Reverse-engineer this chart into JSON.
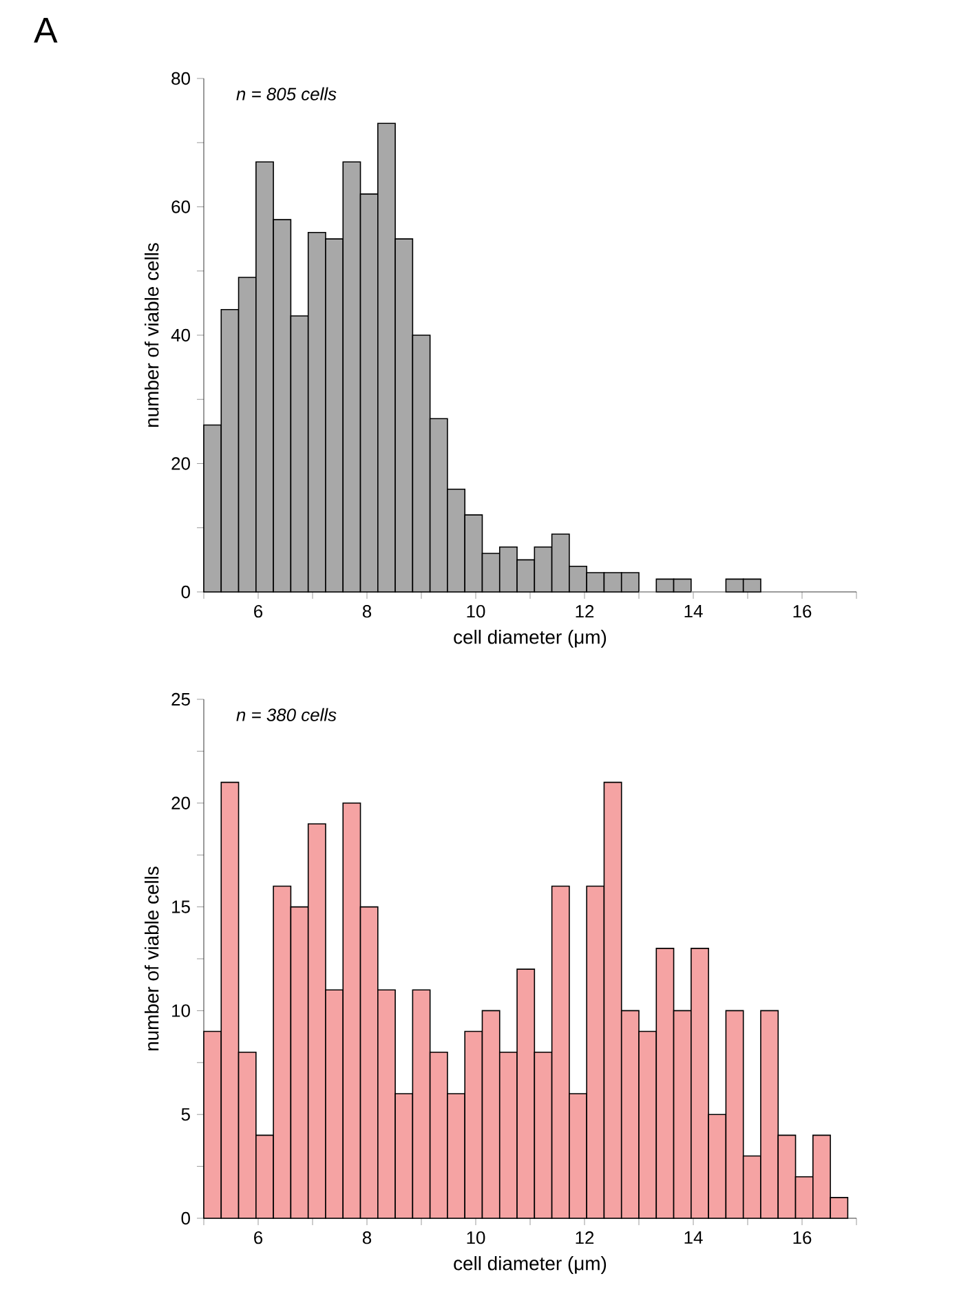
{
  "chart_data": [
    {
      "type": "histogram",
      "annotations": [
        "A",
        "n = 805 cells"
      ],
      "xlabel": "cell diameter (μm)",
      "ylabel": "number of viable cells",
      "color": "#a8a8a8",
      "bins": [
        5.0,
        5.32,
        5.64,
        5.96,
        6.28,
        6.6,
        6.92,
        7.24,
        7.56,
        7.88,
        8.2,
        8.52,
        8.84,
        9.16,
        9.48,
        9.8,
        10.12,
        10.44,
        10.76,
        11.08,
        11.4,
        11.72,
        12.04,
        12.36,
        12.68,
        13.0,
        13.32,
        13.64,
        13.96,
        14.28,
        14.6,
        14.92,
        15.24
      ],
      "values": [
        26,
        44,
        49,
        67,
        58,
        43,
        56,
        55,
        67,
        62,
        73,
        55,
        40,
        27,
        16,
        12,
        6,
        7,
        5,
        7,
        9,
        4,
        3,
        3,
        3,
        0,
        2,
        2,
        0,
        0,
        2,
        2
      ],
      "xlim": [
        5,
        17
      ],
      "ylim": [
        0,
        80
      ],
      "xticks": [
        {
          "value": 5,
          "label": null
        },
        6,
        {
          "value": 7,
          "label": null
        },
        8,
        {
          "value": 9,
          "label": null
        },
        10,
        {
          "value": 11,
          "label": null
        },
        12,
        {
          "value": 13,
          "label": null
        },
        14,
        {
          "value": 15,
          "label": null
        },
        16,
        {
          "value": 17,
          "label": null
        }
      ],
      "yticks": [
        0,
        {
          "value": 10,
          "label": null
        },
        20,
        {
          "value": 30,
          "label": null
        },
        40,
        {
          "value": 50,
          "label": null
        },
        60,
        {
          "value": 70,
          "label": null
        },
        80
      ],
      "grid": false
    },
    {
      "type": "histogram",
      "annotations": [
        "n = 380 cells"
      ],
      "xlabel": "cell diameter (μm)",
      "ylabel": "number of viable cells",
      "color": "#f5a3a3",
      "bins": [
        5.0,
        5.32,
        5.64,
        5.96,
        6.28,
        6.6,
        6.92,
        7.24,
        7.56,
        7.88,
        8.2,
        8.52,
        8.84,
        9.16,
        9.48,
        9.8,
        10.12,
        10.44,
        10.76,
        11.08,
        11.4,
        11.72,
        12.04,
        12.36,
        12.68,
        13.0,
        13.32,
        13.64,
        13.96,
        14.28,
        14.6,
        14.92,
        15.24,
        15.56,
        15.88,
        16.2,
        16.52,
        16.84
      ],
      "values": [
        9,
        21,
        8,
        4,
        16,
        15,
        19,
        11,
        20,
        15,
        11,
        6,
        11,
        8,
        6,
        9,
        10,
        8,
        12,
        8,
        16,
        6,
        16,
        21,
        10,
        9,
        13,
        10,
        13,
        5,
        10,
        3,
        10,
        4,
        2,
        4,
        1
      ],
      "xlim": [
        5,
        17
      ],
      "ylim": [
        0,
        25
      ],
      "xticks": [
        {
          "value": 5,
          "label": null
        },
        6,
        {
          "value": 7,
          "label": null
        },
        8,
        {
          "value": 9,
          "label": null
        },
        10,
        {
          "value": 11,
          "label": null
        },
        12,
        {
          "value": 13,
          "label": null
        },
        14,
        {
          "value": 15,
          "label": null
        },
        16,
        {
          "value": 17,
          "label": null
        }
      ],
      "yticks": [
        0,
        {
          "value": 2.5,
          "label": null
        },
        5,
        {
          "value": 7.5,
          "label": null
        },
        10,
        {
          "value": 12.5,
          "label": null
        },
        15,
        {
          "value": 17.5,
          "label": null
        },
        20,
        {
          "value": 22.5,
          "label": null
        },
        25
      ],
      "grid": false
    }
  ]
}
